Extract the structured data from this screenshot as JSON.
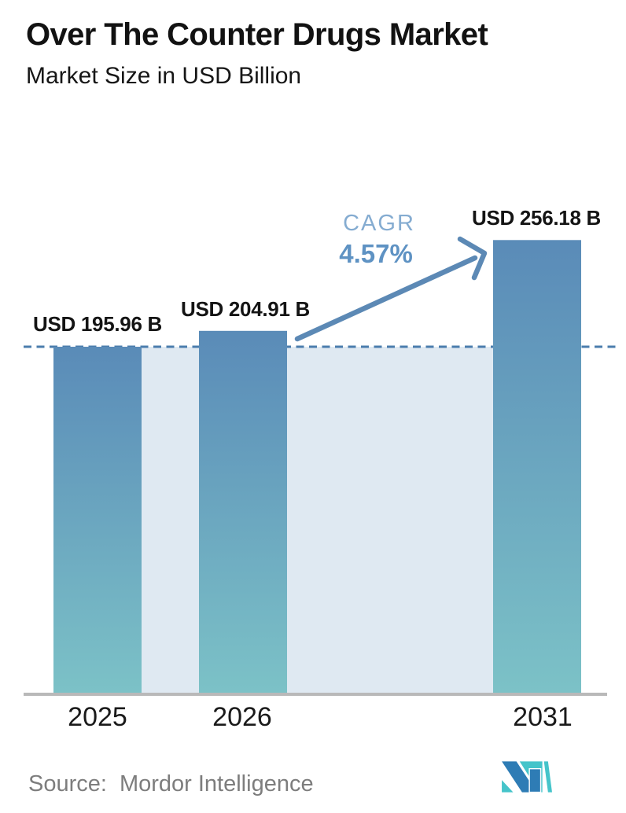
{
  "header": {
    "title": "Over The Counter Drugs Market",
    "subtitle": "Market Size in USD Billion"
  },
  "chart_data": {
    "type": "bar",
    "title": "Over The Counter Drugs Market",
    "ylabel": "Market Size in USD Billion",
    "categories": [
      "2025",
      "2026",
      "2031"
    ],
    "values": [
      195.96,
      204.91,
      256.18
    ],
    "value_labels": [
      "USD 195.96 B",
      "USD 204.91 B",
      "USD 256.18 B"
    ],
    "annotations": {
      "cagr_label": "CAGR",
      "cagr_value": "4.57%",
      "baseline_value": 195.96,
      "baseline_style": "horizontal dashed line at 2025 level",
      "arrow": "diagonal arrow from 2026 bar top to 2031 bar top"
    },
    "axis": {
      "x_ticks": [
        "2025",
        "2026",
        "2031"
      ],
      "y_axis_visible": false,
      "gridlines": false,
      "ylim": [
        0,
        390
      ]
    },
    "style": {
      "bar_top": "#5a8bb8",
      "bar_bottom": "#7cc2c7",
      "band": "#dfe9f2",
      "dash": "#4b7dad",
      "axis": "#b9b9b9",
      "arrow": "#5c89b5",
      "cagr_label_color": "#85acd1",
      "cagr_value_color": "#5e92c3",
      "text_color": "#141414",
      "source_color": "#7d7d7d"
    }
  },
  "footer": {
    "source_label": "Source:",
    "source_name": "Mordor Intelligence",
    "logo_name": "mordor-intelligence-logo",
    "logo_colors": {
      "blue": "#2e7cb5",
      "teal": "#45c4ca"
    }
  }
}
